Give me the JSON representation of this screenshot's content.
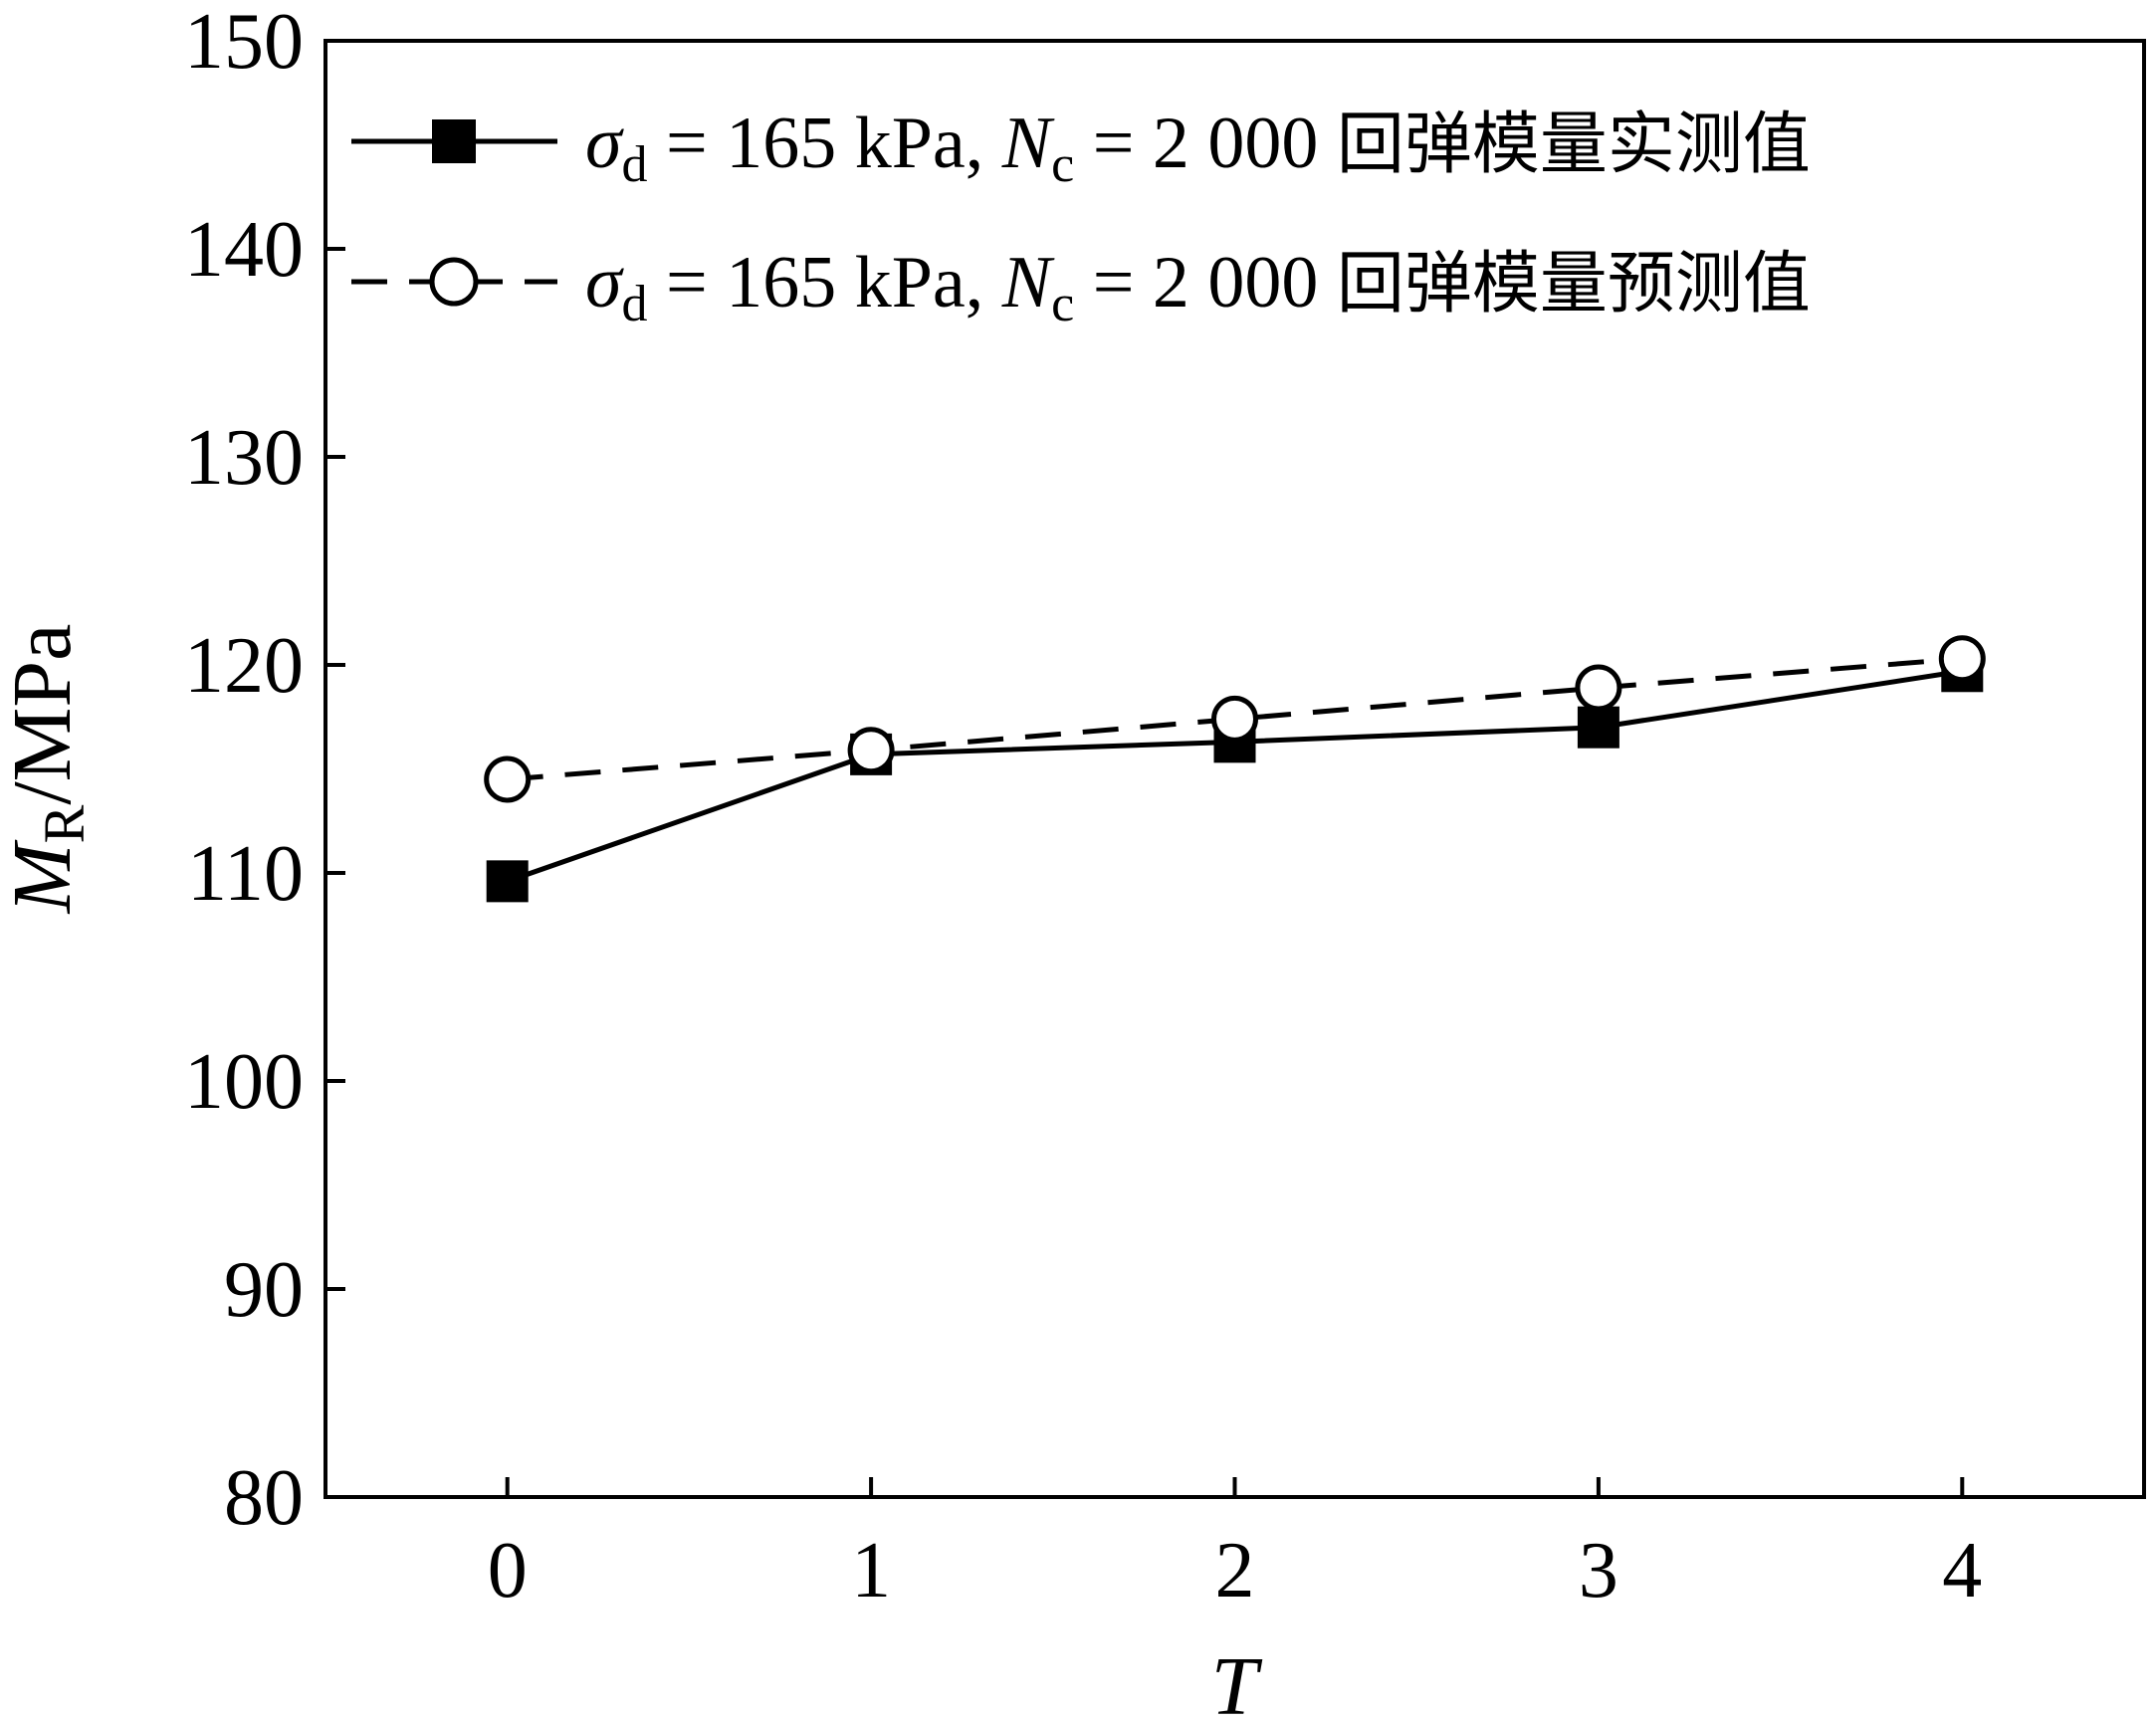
{
  "chart_data": {
    "type": "line",
    "title": "",
    "xlabel": "T",
    "ylabel": {
      "main": "M",
      "sub": "R",
      "unit": "/MPa"
    },
    "xlim": [
      -0.5,
      4.5
    ],
    "ylim": [
      80,
      150
    ],
    "x": [
      0,
      1,
      2,
      3,
      4
    ],
    "x_ticks": [
      "0",
      "1",
      "2",
      "3",
      "4"
    ],
    "y_ticks": [
      80,
      90,
      100,
      110,
      120,
      130,
      140,
      150
    ],
    "y_tick_labels": [
      "80",
      "90",
      "100",
      "110",
      "120",
      "130",
      "140",
      "150"
    ],
    "grid": false,
    "legend_position": "top-left",
    "series": [
      {
        "name": "σd = 165 kPa, Nc = 2 000 回弹模量实测值",
        "legend": {
          "sigma": "σ",
          "sigma_sub": "d",
          "mid": " = 165 kPa, ",
          "n": "N",
          "n_sub": "c",
          "tail": " = 2 000 ",
          "cjk": "回弹模量实测值"
        },
        "values": [
          109.6,
          115.7,
          116.3,
          117.0,
          119.7
        ],
        "line_style": "solid",
        "marker": "filled-square",
        "color": "#000000"
      },
      {
        "name": "σd = 165 kPa, Nc = 2 000 回弹模量预测值",
        "legend": {
          "sigma": "σ",
          "sigma_sub": "d",
          "mid": " = 165 kPa, ",
          "n": "N",
          "n_sub": "c",
          "tail": " = 2 000 ",
          "cjk": "回弹模量预测值"
        },
        "values": [
          114.5,
          115.9,
          117.4,
          118.9,
          120.3
        ],
        "line_style": "dashed",
        "marker": "open-circle",
        "color": "#000000"
      }
    ]
  }
}
